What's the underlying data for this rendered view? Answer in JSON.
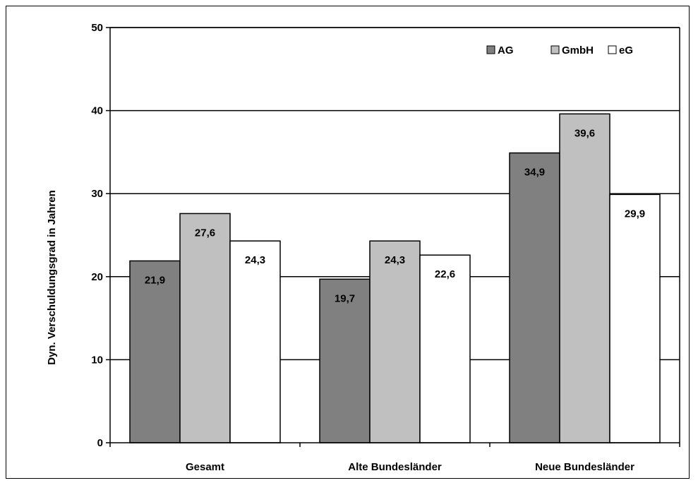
{
  "chart_data": {
    "type": "bar",
    "title": "",
    "xlabel": "",
    "ylabel": "Dyn. Verschuldungsgrad in Jahren",
    "ylim": [
      0,
      50
    ],
    "yticks": [
      0,
      10,
      20,
      30,
      40,
      50
    ],
    "grid": true,
    "legend_position": "top-right",
    "categories": [
      "Gesamt",
      "Alte Bundesländer",
      "Neue Bundesländer"
    ],
    "series": [
      {
        "name": "AG",
        "values": [
          21.9,
          19.7,
          34.9
        ],
        "labels": [
          "21,9",
          "19,7",
          "34,9"
        ],
        "color": "#808080"
      },
      {
        "name": "GmbH",
        "values": [
          27.6,
          24.3,
          39.6
        ],
        "labels": [
          "27,6",
          "24,3",
          "39,6"
        ],
        "color": "#c0c0c0"
      },
      {
        "name": "eG",
        "values": [
          24.3,
          22.6,
          29.9
        ],
        "labels": [
          "24,3",
          "22,6",
          "29,9"
        ],
        "color": "#ffffff"
      }
    ]
  }
}
